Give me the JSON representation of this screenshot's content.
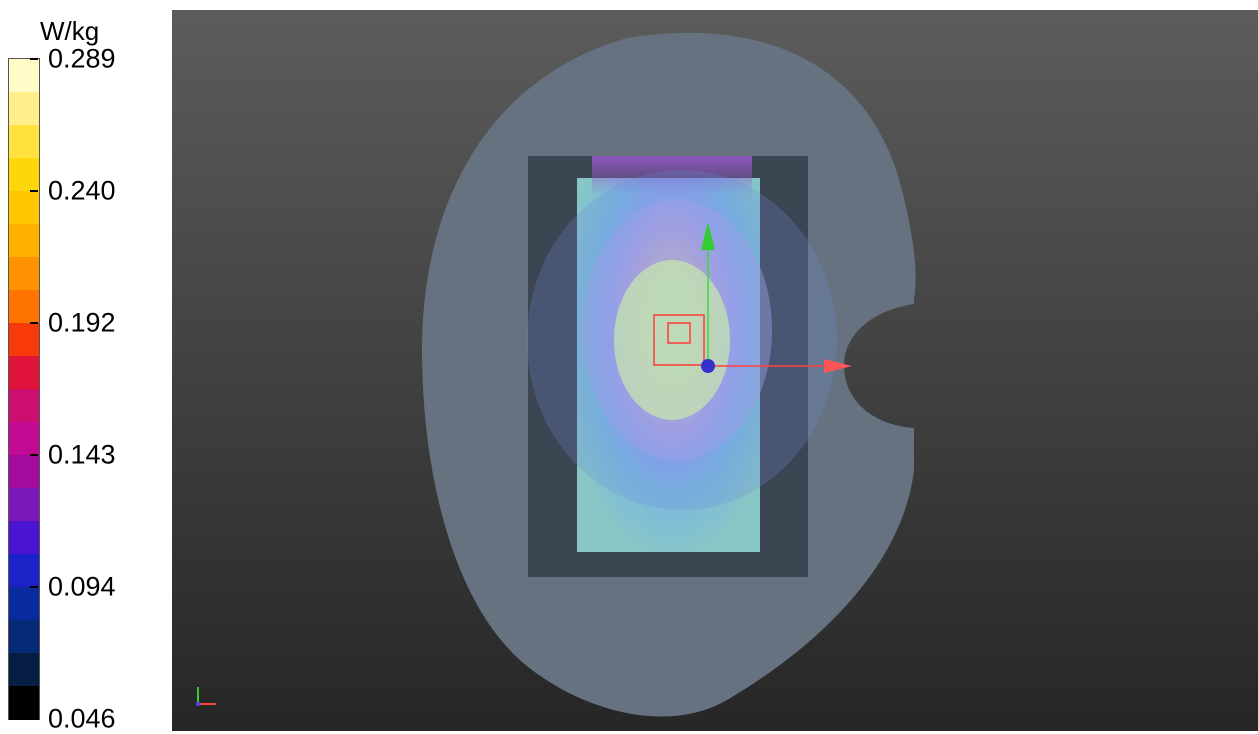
{
  "legend": {
    "unit": "W/kg",
    "ticks": [
      "0.289",
      "0.240",
      "0.192",
      "0.143",
      "0.094",
      "0.046"
    ],
    "colors": [
      "#fffcc8",
      "#ffef8a",
      "#ffe23e",
      "#fdd70c",
      "#ffc600",
      "#ffb000",
      "#ff9200",
      "#ff7400",
      "#f83a0a",
      "#e0143a",
      "#ce0e6e",
      "#c20a93",
      "#a30a9e",
      "#7a18b8",
      "#4a14d0",
      "#1a22c8",
      "#0a2aa0",
      "#072a76",
      "#061e44",
      "#000000"
    ]
  },
  "viewport": {
    "name": "3d-viewport"
  }
}
